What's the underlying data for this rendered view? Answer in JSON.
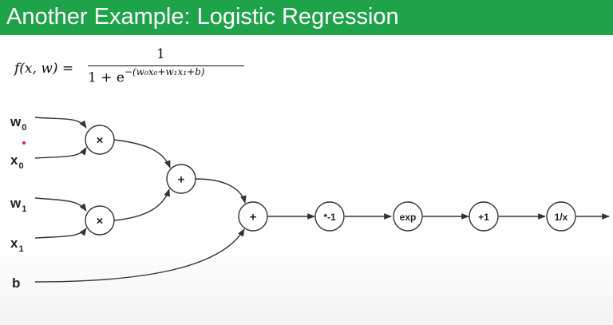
{
  "title": "Another Example: Logistic Regression",
  "formula": {
    "lhs": "f(x, w) =",
    "numerator": "1",
    "denominator": "1 + e",
    "exponent": "−(w₀x₀+w₁x₁+b)"
  },
  "inputs": [
    {
      "id": "w0",
      "name": "w",
      "sub": "0"
    },
    {
      "id": "x0",
      "name": "x",
      "sub": "0"
    },
    {
      "id": "w1",
      "name": "w",
      "sub": "1"
    },
    {
      "id": "x1",
      "name": "x",
      "sub": "1"
    },
    {
      "id": "b",
      "name": "b",
      "sub": ""
    }
  ],
  "nodes": {
    "mul1": "×",
    "mul2": "×",
    "add1": "+",
    "add2": "+",
    "neg": "*-1",
    "exp": "exp",
    "plus1": "+1",
    "recip": "1/x"
  },
  "colors": {
    "title_bar": "#1fa34a",
    "title_text": "#ffffff",
    "stroke": "#333333",
    "dot": "#e0203a"
  }
}
